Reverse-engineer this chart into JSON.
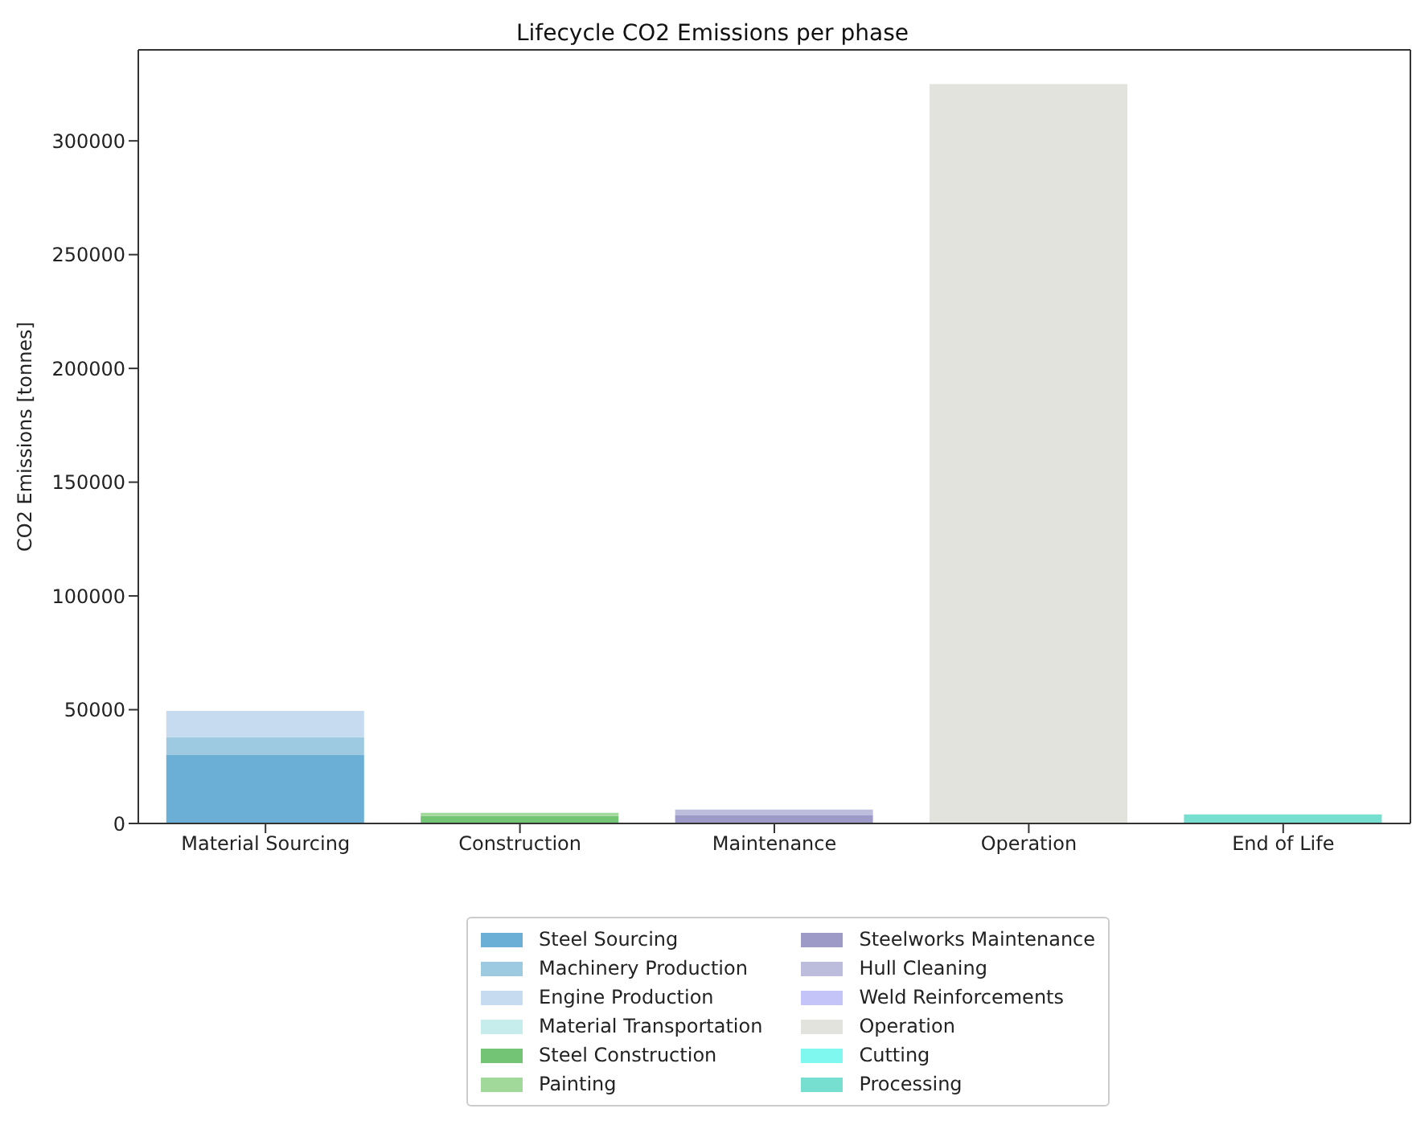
{
  "chart_data": {
    "type": "bar",
    "title": "Lifecycle CO2 Emissions per phase",
    "ylabel": "CO2 Emissions [tonnes]",
    "categories": [
      "Material Sourcing",
      "Construction",
      "Maintenance",
      "Operation",
      "End of Life"
    ],
    "stacked": true,
    "legend": "bottom",
    "grid": false,
    "ylim": [
      0,
      340000
    ],
    "yticks": [
      0,
      50000,
      100000,
      150000,
      200000,
      250000,
      300000
    ],
    "series": [
      {
        "name": "Steel Sourcing",
        "color": "#6baed6",
        "values": [
          30000,
          0,
          0,
          0,
          0
        ]
      },
      {
        "name": "Machinery Production",
        "color": "#9ecae1",
        "values": [
          8000,
          0,
          0,
          0,
          0
        ]
      },
      {
        "name": "Engine Production",
        "color": "#c6dbef",
        "values": [
          11500,
          0,
          0,
          0,
          0
        ]
      },
      {
        "name": "Material Transportation",
        "color": "#c6ecec",
        "values": [
          0,
          0,
          0,
          0,
          0
        ]
      },
      {
        "name": "Steel Construction",
        "color": "#74c476",
        "values": [
          0,
          3300,
          0,
          0,
          0
        ]
      },
      {
        "name": "Painting",
        "color": "#a1d99b",
        "values": [
          0,
          1400,
          0,
          0,
          0
        ]
      },
      {
        "name": "Steelworks Maintenance",
        "color": "#9e9ac8",
        "values": [
          0,
          0,
          3500,
          0,
          0
        ]
      },
      {
        "name": "Hull Cleaning",
        "color": "#bcbddc",
        "values": [
          0,
          0,
          2600,
          0,
          0
        ]
      },
      {
        "name": "Weld Reinforcements",
        "color": "#c4c4f8",
        "values": [
          0,
          0,
          0,
          0,
          0
        ]
      },
      {
        "name": "Operation",
        "color": "#e3e3de",
        "values": [
          0,
          0,
          0,
          325000,
          0
        ]
      },
      {
        "name": "Cutting",
        "color": "#7ff8ef",
        "values": [
          0,
          0,
          0,
          0,
          0
        ]
      },
      {
        "name": "Processing",
        "color": "#76dfd0",
        "values": [
          0,
          0,
          0,
          0,
          4000
        ]
      }
    ]
  }
}
